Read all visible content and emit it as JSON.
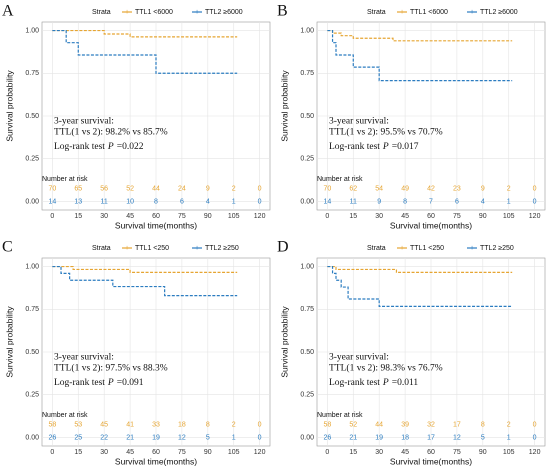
{
  "chart_data": [
    {
      "type": "step",
      "panel": "A",
      "legend_title": "Strata",
      "xlabel": "Survival time(months)",
      "ylabel": "Survival probability",
      "xlim": [
        -6,
        126
      ],
      "xticks": [
        0,
        15,
        30,
        45,
        60,
        75,
        90,
        105,
        120
      ],
      "ylim": [
        -0.05,
        1.05
      ],
      "yticks": [
        {
          "value": 0,
          "label": "0.00"
        },
        {
          "value": 0.25,
          "label": "0.25"
        },
        {
          "value": 0.5,
          "label": "0.50"
        },
        {
          "value": 0.75,
          "label": "0.75"
        },
        {
          "value": 1,
          "label": "1.00"
        }
      ],
      "grid": true,
      "annotations": [
        "3-year survival:",
        "TTL(1 vs 2): 98.2% vs 85.7%"
      ],
      "logrank": {
        "text": "Log-rank test",
        "symbol": "P",
        "value": "=0.022"
      },
      "risk_title": "Number at risk",
      "series": [
        {
          "name": "TTL1 <6000",
          "color": "#e6a532",
          "x": [
            0,
            30,
            45,
            107
          ],
          "values": [
            1,
            0.98,
            0.963,
            0.963
          ],
          "at_risk": [
            70,
            65,
            56,
            52,
            44,
            24,
            9,
            2,
            0
          ]
        },
        {
          "name": "TTL2 ≥6000",
          "color": "#2b7cc0",
          "x": [
            0,
            8,
            15,
            60,
            107
          ],
          "values": [
            1,
            0.929,
            0.857,
            0.75,
            0.75
          ],
          "at_risk": [
            14,
            13,
            11,
            10,
            8,
            6,
            4,
            1,
            0
          ]
        }
      ]
    },
    {
      "type": "step",
      "panel": "B",
      "legend_title": "Strata",
      "xlabel": "Survival time(months)",
      "ylabel": "Survival probability",
      "xlim": [
        -6,
        126
      ],
      "xticks": [
        0,
        15,
        30,
        45,
        60,
        75,
        90,
        105,
        120
      ],
      "ylim": [
        -0.05,
        1.05
      ],
      "yticks": [
        {
          "value": 0,
          "label": "0.00"
        },
        {
          "value": 0.25,
          "label": "0.25"
        },
        {
          "value": 0.5,
          "label": "0.50"
        },
        {
          "value": 0.75,
          "label": "0.75"
        },
        {
          "value": 1,
          "label": "1.00"
        }
      ],
      "grid": true,
      "annotations": [
        "3-year survival:",
        "TTL(1 vs 2): 95.5% vs 70.7%"
      ],
      "logrank": {
        "text": "Log-rank test",
        "symbol": "P",
        "value": "=0.017"
      },
      "risk_title": "Number at risk",
      "series": [
        {
          "name": "TTL1 <6000",
          "color": "#e6a532",
          "x": [
            0,
            3,
            8,
            15,
            38,
            107
          ],
          "values": [
            1,
            0.985,
            0.97,
            0.955,
            0.94,
            0.94
          ],
          "at_risk": [
            70,
            62,
            54,
            49,
            42,
            23,
            9,
            2,
            0
          ]
        },
        {
          "name": "TTL2 ≥6000",
          "color": "#2b7cc0",
          "x": [
            0,
            3,
            5,
            15,
            30,
            107
          ],
          "values": [
            1,
            0.929,
            0.857,
            0.786,
            0.707,
            0.707
          ],
          "at_risk": [
            14,
            11,
            9,
            8,
            7,
            6,
            4,
            1,
            0
          ]
        }
      ]
    },
    {
      "type": "step",
      "panel": "C",
      "legend_title": "Strata",
      "xlabel": "Survival time(months)",
      "ylabel": "Survival probability",
      "xlim": [
        -6,
        126
      ],
      "xticks": [
        0,
        15,
        30,
        45,
        60,
        75,
        90,
        105,
        120
      ],
      "ylim": [
        -0.05,
        1.05
      ],
      "yticks": [
        {
          "value": 0,
          "label": "0.00"
        },
        {
          "value": 0.25,
          "label": "0.25"
        },
        {
          "value": 0.5,
          "label": "0.50"
        },
        {
          "value": 0.75,
          "label": "0.75"
        },
        {
          "value": 1,
          "label": "1.00"
        }
      ],
      "grid": true,
      "annotations": [
        "3-year survival:",
        "TTL(1 vs 2): 97.5% vs 88.3%"
      ],
      "logrank": {
        "text": "Log-rank test",
        "symbol": "P",
        "value": "=0.091"
      },
      "risk_title": "Number at risk",
      "series": [
        {
          "name": "TTL1 <250",
          "color": "#e6a532",
          "x": [
            0,
            12,
            45,
            107
          ],
          "values": [
            1,
            0.983,
            0.966,
            0.966
          ],
          "at_risk": [
            58,
            53,
            45,
            41,
            33,
            18,
            8,
            2,
            0
          ]
        },
        {
          "name": "TTL2 ≥250",
          "color": "#2b7cc0",
          "x": [
            0,
            5,
            10,
            35,
            65,
            107
          ],
          "values": [
            1,
            0.96,
            0.92,
            0.883,
            0.83,
            0.83
          ],
          "at_risk": [
            26,
            25,
            22,
            21,
            19,
            12,
            5,
            1,
            0
          ]
        }
      ]
    },
    {
      "type": "step",
      "panel": "D",
      "legend_title": "Strata",
      "xlabel": "Survival time(months)",
      "ylabel": "Survival probability",
      "xlim": [
        -6,
        126
      ],
      "xticks": [
        0,
        15,
        30,
        45,
        60,
        75,
        90,
        105,
        120
      ],
      "ylim": [
        -0.05,
        1.05
      ],
      "yticks": [
        {
          "value": 0,
          "label": "0.00"
        },
        {
          "value": 0.25,
          "label": "0.25"
        },
        {
          "value": 0.5,
          "label": "0.50"
        },
        {
          "value": 0.75,
          "label": "0.75"
        },
        {
          "value": 1,
          "label": "1.00"
        }
      ],
      "grid": true,
      "annotations": [
        "3-year survival:",
        "TTL(1 vs 2): 98.3% vs 76.7%"
      ],
      "logrank": {
        "text": "Log-rank test",
        "symbol": "P",
        "value": "=0.011"
      },
      "risk_title": "Number at risk",
      "series": [
        {
          "name": "TTL1 <250",
          "color": "#e6a532",
          "x": [
            0,
            5,
            40,
            107
          ],
          "values": [
            1,
            0.983,
            0.966,
            0.966
          ],
          "at_risk": [
            58,
            52,
            44,
            39,
            32,
            17,
            8,
            2,
            0
          ]
        },
        {
          "name": "TTL2 ≥250",
          "color": "#2b7cc0",
          "x": [
            0,
            3,
            5,
            8,
            12,
            30,
            107
          ],
          "values": [
            1,
            0.96,
            0.92,
            0.88,
            0.81,
            0.767,
            0.767
          ],
          "at_risk": [
            26,
            21,
            19,
            18,
            17,
            12,
            5,
            1,
            0
          ]
        }
      ]
    }
  ]
}
